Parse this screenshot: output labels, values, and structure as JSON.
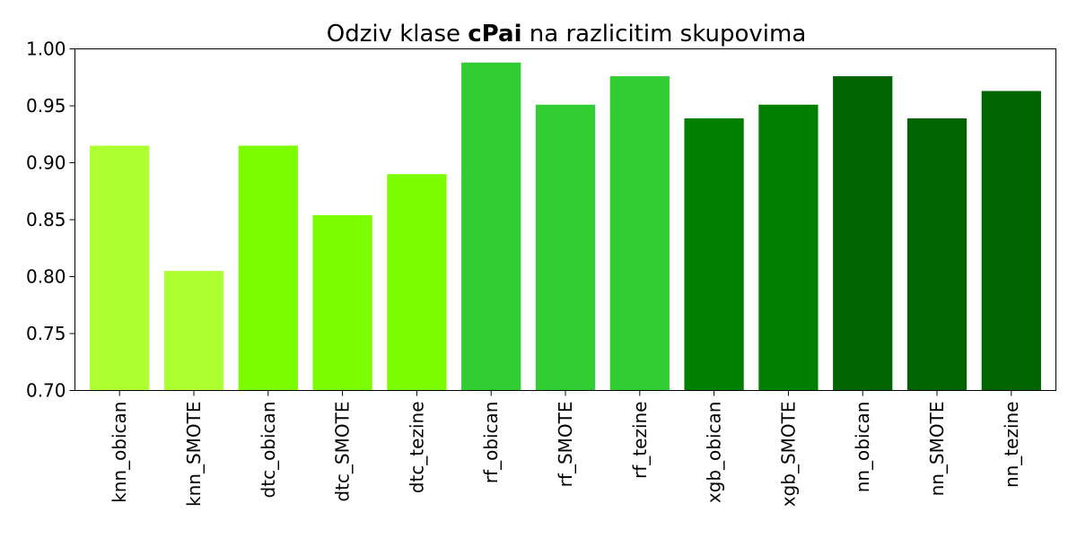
{
  "chart_data": {
    "type": "bar",
    "title": {
      "prefix": "Odziv klase ",
      "bold": "cPai",
      "suffix": " na razlicitim skupovima"
    },
    "xlabel": "",
    "ylabel": "",
    "ylim": [
      0.7,
      1.0
    ],
    "yticks": [
      "0.70",
      "0.75",
      "0.80",
      "0.85",
      "0.90",
      "0.95",
      "1.00"
    ],
    "grid": false,
    "categories": [
      "knn_obican",
      "knn_SMOTE",
      "dtc_obican",
      "dtc_SMOTE",
      "dtc_tezine",
      "rf_obican",
      "rf_SMOTE",
      "rf_tezine",
      "xgb_obican",
      "xgb_SMOTE",
      "nn_obican",
      "nn_SMOTE",
      "nn_tezine"
    ],
    "values": [
      0.915,
      0.805,
      0.915,
      0.854,
      0.89,
      0.988,
      0.951,
      0.976,
      0.939,
      0.951,
      0.976,
      0.939,
      0.963
    ],
    "colors": [
      "#adff2f",
      "#adff2f",
      "#7cfc00",
      "#7cfc00",
      "#7cfc00",
      "#32cd32",
      "#32cd32",
      "#32cd32",
      "#008000",
      "#008000",
      "#006400",
      "#006400",
      "#006400"
    ]
  }
}
